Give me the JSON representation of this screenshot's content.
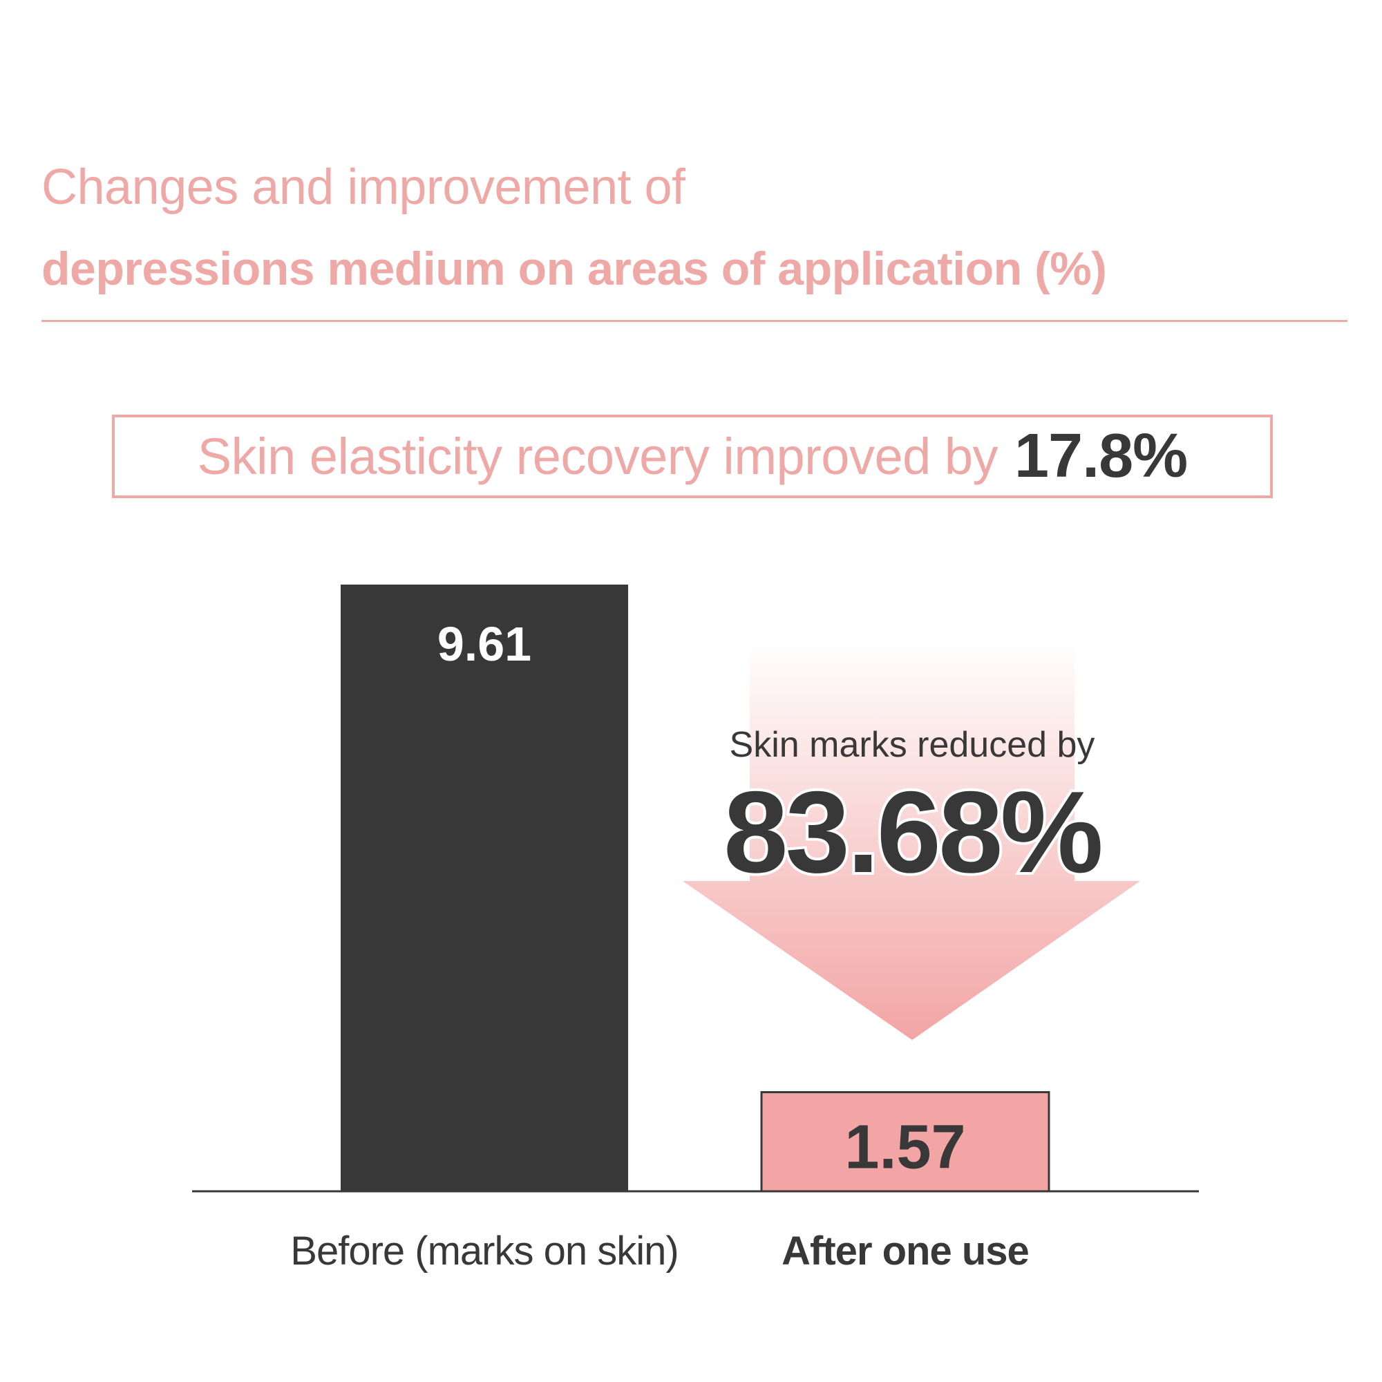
{
  "colors": {
    "accent": "#eea9a7",
    "dark": "#383838",
    "bar_after": "#f2a5a4",
    "arrow_top": "#ffffff",
    "arrow_bottom": "#f2a5a4",
    "white": "#ffffff"
  },
  "header": {
    "title_line1": "Changes and improvement of",
    "title_line2": "depressions medium on areas of application (%)"
  },
  "highlight": {
    "text": "Skin elasticity recovery improved by",
    "value": "17.8%"
  },
  "annotation": {
    "caption": "Skin marks reduced by",
    "value": "83.68%",
    "arrow": "down-arrow-icon"
  },
  "chart_data": {
    "type": "bar",
    "title": "",
    "categories": [
      "Before (marks on skin)",
      "After one use"
    ],
    "values": [
      9.61,
      1.57
    ],
    "value_labels": [
      "9.61",
      "1.57"
    ],
    "ylim": [
      0,
      9.61
    ],
    "grid": false,
    "legend": "none",
    "xlabel": "",
    "ylabel": ""
  }
}
